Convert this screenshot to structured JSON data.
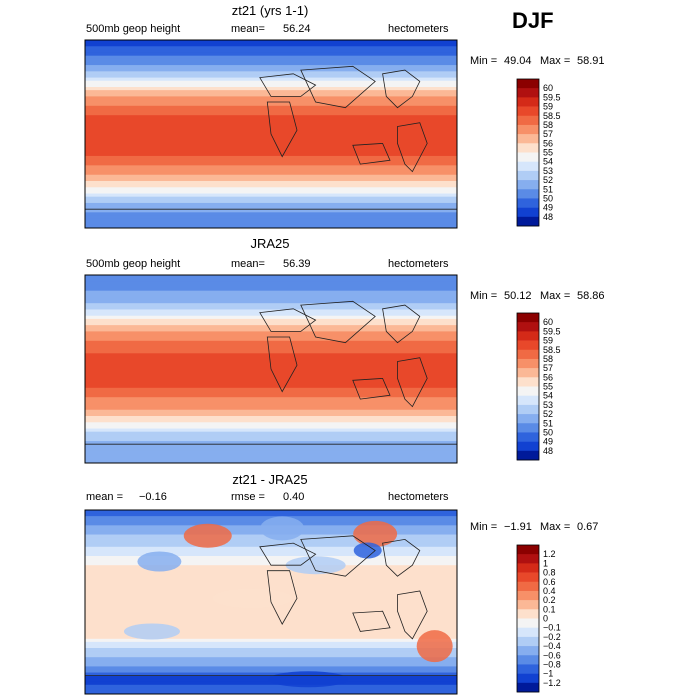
{
  "season": "DJF",
  "chart_data": [
    {
      "type": "heatmap",
      "title": "zt21 (yrs 1-1)",
      "field": "500mb geop height",
      "mean_label": "mean=",
      "mean": "56.24",
      "units": "hectometers",
      "min_label": "Min =",
      "min": "49.04",
      "max_label": "Max =",
      "max": "58.91",
      "colorbar": {
        "labels": [
          "60",
          "59.5",
          "59",
          "58.5",
          "58",
          "57",
          "56",
          "55",
          "54",
          "53",
          "52",
          "51",
          "50",
          "49",
          "48"
        ],
        "colors": [
          "#8b0000",
          "#b01010",
          "#d42a18",
          "#e8482a",
          "#f06a44",
          "#f79068",
          "#fbb896",
          "#fde0cc",
          "#f4f4f4",
          "#d6e6fb",
          "#b0cdf5",
          "#86aeef",
          "#5a8be6",
          "#2f63dd",
          "#1141d1",
          "#001a9a"
        ]
      },
      "profile": [
        {
          "lat": 90,
          "v": 48.6
        },
        {
          "lat": 75,
          "v": 49.8
        },
        {
          "lat": 60,
          "v": 51.8
        },
        {
          "lat": 48,
          "v": 54.6
        },
        {
          "lat": 38,
          "v": 56.8
        },
        {
          "lat": 25,
          "v": 58.3
        },
        {
          "lat": 10,
          "v": 58.8
        },
        {
          "lat": 0,
          "v": 58.8
        },
        {
          "lat": -10,
          "v": 58.9
        },
        {
          "lat": -25,
          "v": 58.4
        },
        {
          "lat": -38,
          "v": 57.2
        },
        {
          "lat": -50,
          "v": 55.1
        },
        {
          "lat": -62,
          "v": 52.8
        },
        {
          "lat": -75,
          "v": 50.9
        },
        {
          "lat": -90,
          "v": 50.4
        }
      ]
    },
    {
      "type": "heatmap",
      "title": "JRA25",
      "field": "500mb geop height",
      "mean_label": "mean=",
      "mean": "56.39",
      "units": "hectometers",
      "min_label": "Min =",
      "min": "50.12",
      "max_label": "Max =",
      "max": "58.86",
      "colorbar": {
        "labels": [
          "60",
          "59.5",
          "59",
          "58.5",
          "58",
          "57",
          "56",
          "55",
          "54",
          "53",
          "52",
          "51",
          "50",
          "49",
          "48"
        ],
        "colors": [
          "#8b0000",
          "#b01010",
          "#d42a18",
          "#e8482a",
          "#f06a44",
          "#f79068",
          "#fbb896",
          "#fde0cc",
          "#f4f4f4",
          "#d6e6fb",
          "#b0cdf5",
          "#86aeef",
          "#5a8be6",
          "#2f63dd",
          "#1141d1",
          "#001a9a"
        ]
      },
      "profile": [
        {
          "lat": 90,
          "v": 50.2
        },
        {
          "lat": 75,
          "v": 50.9
        },
        {
          "lat": 60,
          "v": 52.3
        },
        {
          "lat": 48,
          "v": 54.8
        },
        {
          "lat": 38,
          "v": 56.9
        },
        {
          "lat": 25,
          "v": 58.2
        },
        {
          "lat": 10,
          "v": 58.7
        },
        {
          "lat": 0,
          "v": 58.7
        },
        {
          "lat": -10,
          "v": 58.8
        },
        {
          "lat": -25,
          "v": 58.3
        },
        {
          "lat": -38,
          "v": 57.1
        },
        {
          "lat": -50,
          "v": 55.0
        },
        {
          "lat": -62,
          "v": 52.9
        },
        {
          "lat": -75,
          "v": 51.5
        },
        {
          "lat": -90,
          "v": 51.2
        }
      ]
    },
    {
      "type": "heatmap",
      "title": "zt21 - JRA25",
      "mean_label": "mean =",
      "mean": "−0.16",
      "rmse_label": "rmse =",
      "rmse": "0.40",
      "units": "hectometers",
      "min_label": "Min =",
      "min": "−1.91",
      "max_label": "Max =",
      "max": "0.67",
      "colorbar": {
        "labels": [
          "1.2",
          "1",
          "0.8",
          "0.6",
          "0.4",
          "0.2",
          "0.1",
          "0",
          "−0.1",
          "−0.2",
          "−0.4",
          "−0.6",
          "−0.8",
          "−1",
          "−1.2"
        ],
        "colors": [
          "#8b0000",
          "#b01010",
          "#d42a18",
          "#e8482a",
          "#f06a44",
          "#f79068",
          "#fbb896",
          "#fde0cc",
          "#f4f4f4",
          "#d6e6fb",
          "#b0cdf5",
          "#86aeef",
          "#5a8be6",
          "#2f63dd",
          "#1141d1",
          "#001a9a"
        ]
      },
      "profile": [
        {
          "lat": 90,
          "v": -1.0
        },
        {
          "lat": 75,
          "v": -0.6
        },
        {
          "lat": 60,
          "v": -0.3
        },
        {
          "lat": 45,
          "v": -0.1
        },
        {
          "lat": 30,
          "v": 0.05
        },
        {
          "lat": 15,
          "v": 0.08
        },
        {
          "lat": 0,
          "v": 0.05
        },
        {
          "lat": -15,
          "v": 0.08
        },
        {
          "lat": -30,
          "v": 0.1
        },
        {
          "lat": -45,
          "v": -0.2
        },
        {
          "lat": -60,
          "v": -0.5
        },
        {
          "lat": -75,
          "v": -1.1
        },
        {
          "lat": -90,
          "v": -0.9
        }
      ]
    }
  ]
}
